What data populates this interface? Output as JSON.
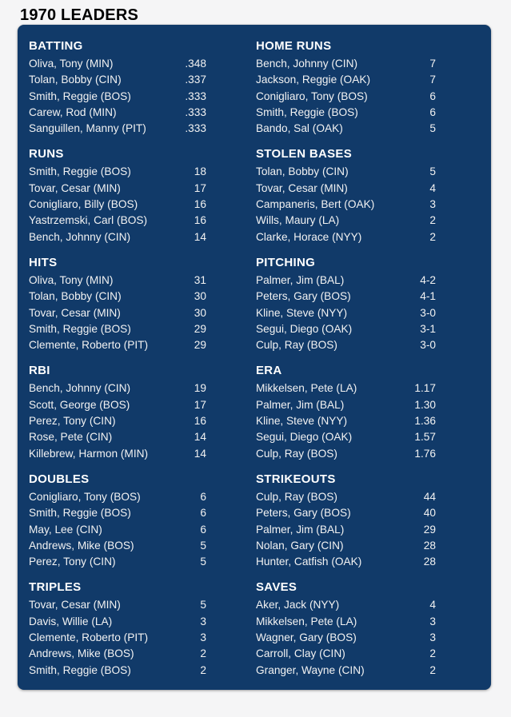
{
  "page_title": "1970 LEADERS",
  "colors": {
    "page_bg": "#f5f5f6",
    "panel_bg": "#113a69",
    "title_text": "#000000",
    "section_header_text": "#ffffff",
    "row_text": "#f2f2f2"
  },
  "columns": [
    [
      {
        "title": "BATTING",
        "rows": [
          {
            "player": "Oliva, Tony (MIN)",
            "value": ".348"
          },
          {
            "player": "Tolan, Bobby (CIN)",
            "value": ".337"
          },
          {
            "player": "Smith, Reggie (BOS)",
            "value": ".333"
          },
          {
            "player": "Carew, Rod (MIN)",
            "value": ".333"
          },
          {
            "player": "Sanguillen, Manny (PIT)",
            "value": ".333"
          }
        ]
      },
      {
        "title": "RUNS",
        "rows": [
          {
            "player": "Smith, Reggie (BOS)",
            "value": "18"
          },
          {
            "player": "Tovar, Cesar (MIN)",
            "value": "17"
          },
          {
            "player": "Conigliaro, Billy (BOS)",
            "value": "16"
          },
          {
            "player": "Yastrzemski, Carl (BOS)",
            "value": "16"
          },
          {
            "player": "Bench, Johnny (CIN)",
            "value": "14"
          }
        ]
      },
      {
        "title": "HITS",
        "rows": [
          {
            "player": "Oliva, Tony (MIN)",
            "value": "31"
          },
          {
            "player": "Tolan, Bobby (CIN)",
            "value": "30"
          },
          {
            "player": "Tovar, Cesar (MIN)",
            "value": "30"
          },
          {
            "player": "Smith, Reggie (BOS)",
            "value": "29"
          },
          {
            "player": "Clemente, Roberto (PIT)",
            "value": "29"
          }
        ]
      },
      {
        "title": "RBI",
        "rows": [
          {
            "player": "Bench, Johnny (CIN)",
            "value": "19"
          },
          {
            "player": "Scott, George (BOS)",
            "value": "17"
          },
          {
            "player": "Perez, Tony (CIN)",
            "value": "16"
          },
          {
            "player": "Rose, Pete (CIN)",
            "value": "14"
          },
          {
            "player": "Killebrew, Harmon (MIN)",
            "value": "14"
          }
        ]
      },
      {
        "title": "DOUBLES",
        "rows": [
          {
            "player": "Conigliaro, Tony (BOS)",
            "value": "6"
          },
          {
            "player": "Smith, Reggie (BOS)",
            "value": "6"
          },
          {
            "player": "May, Lee (CIN)",
            "value": "6"
          },
          {
            "player": "Andrews, Mike (BOS)",
            "value": "5"
          },
          {
            "player": "Perez, Tony (CIN)",
            "value": "5"
          }
        ]
      },
      {
        "title": "TRIPLES",
        "rows": [
          {
            "player": "Tovar, Cesar (MIN)",
            "value": "5"
          },
          {
            "player": "Davis, Willie (LA)",
            "value": "3"
          },
          {
            "player": "Clemente, Roberto (PIT)",
            "value": "3"
          },
          {
            "player": "Andrews, Mike (BOS)",
            "value": "2"
          },
          {
            "player": "Smith, Reggie (BOS)",
            "value": "2"
          }
        ]
      }
    ],
    [
      {
        "title": "HOME RUNS",
        "rows": [
          {
            "player": "Bench, Johnny (CIN)",
            "value": "7"
          },
          {
            "player": "Jackson, Reggie (OAK)",
            "value": "7"
          },
          {
            "player": "Conigliaro, Tony (BOS)",
            "value": "6"
          },
          {
            "player": "Smith, Reggie (BOS)",
            "value": "6"
          },
          {
            "player": "Bando, Sal (OAK)",
            "value": "5"
          }
        ]
      },
      {
        "title": "STOLEN BASES",
        "rows": [
          {
            "player": "Tolan, Bobby (CIN)",
            "value": "5"
          },
          {
            "player": "Tovar, Cesar (MIN)",
            "value": "4"
          },
          {
            "player": "Campaneris, Bert (OAK)",
            "value": "3"
          },
          {
            "player": "Wills, Maury (LA)",
            "value": "2"
          },
          {
            "player": "Clarke, Horace (NYY)",
            "value": "2"
          }
        ]
      },
      {
        "title": "PITCHING",
        "rows": [
          {
            "player": "Palmer, Jim (BAL)",
            "value": "4-2"
          },
          {
            "player": "Peters, Gary (BOS)",
            "value": "4-1"
          },
          {
            "player": "Kline, Steve (NYY)",
            "value": "3-0"
          },
          {
            "player": "Segui, Diego (OAK)",
            "value": "3-1"
          },
          {
            "player": "Culp, Ray (BOS)",
            "value": "3-0"
          }
        ]
      },
      {
        "title": "ERA",
        "rows": [
          {
            "player": "Mikkelsen, Pete (LA)",
            "value": "1.17"
          },
          {
            "player": "Palmer, Jim (BAL)",
            "value": "1.30"
          },
          {
            "player": "Kline, Steve (NYY)",
            "value": "1.36"
          },
          {
            "player": "Segui, Diego (OAK)",
            "value": "1.57"
          },
          {
            "player": "Culp, Ray (BOS)",
            "value": "1.76"
          }
        ]
      },
      {
        "title": "STRIKEOUTS",
        "rows": [
          {
            "player": "Culp, Ray (BOS)",
            "value": "44"
          },
          {
            "player": "Peters, Gary (BOS)",
            "value": "40"
          },
          {
            "player": "Palmer, Jim (BAL)",
            "value": "29"
          },
          {
            "player": "Nolan, Gary (CIN)",
            "value": "28"
          },
          {
            "player": "Hunter, Catfish (OAK)",
            "value": "28"
          }
        ]
      },
      {
        "title": "SAVES",
        "rows": [
          {
            "player": "Aker, Jack (NYY)",
            "value": "4"
          },
          {
            "player": "Mikkelsen, Pete (LA)",
            "value": "3"
          },
          {
            "player": "Wagner, Gary (BOS)",
            "value": "3"
          },
          {
            "player": "Carroll, Clay (CIN)",
            "value": "2"
          },
          {
            "player": "Granger, Wayne (CIN)",
            "value": "2"
          }
        ]
      }
    ]
  ]
}
